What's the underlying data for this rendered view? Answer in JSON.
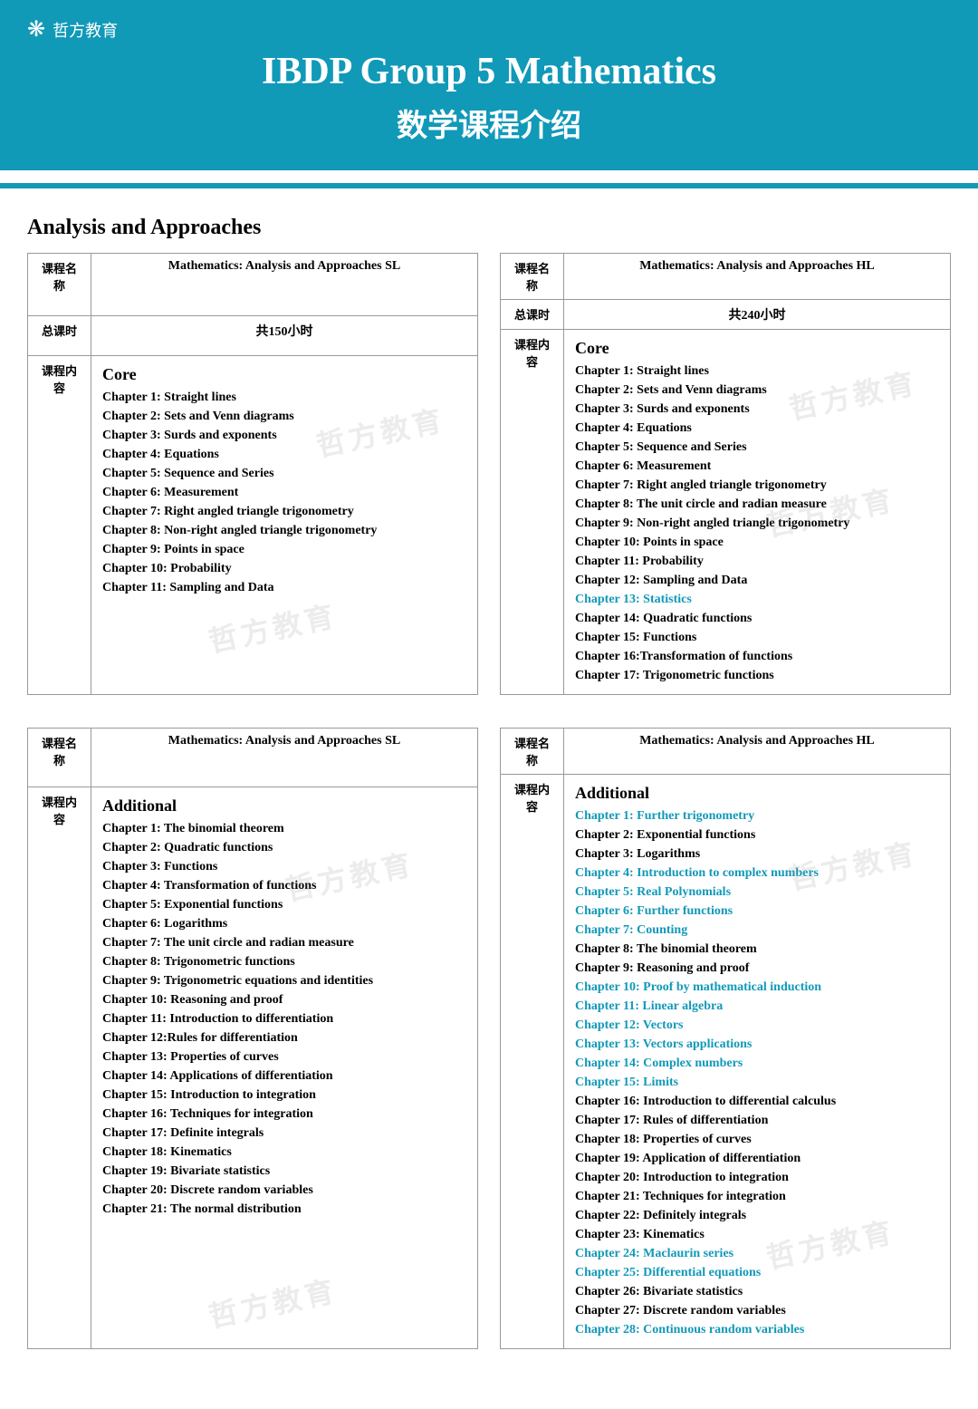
{
  "logo_text": "哲方教育",
  "title": "IBDP Group 5 Mathematics",
  "subtitle": "数学课程介绍",
  "section_title": "Analysis and Approaches",
  "labels": {
    "course_name": "课程名称",
    "total_hours": "总课时",
    "course_content": "课程内容"
  },
  "watermark": "哲方教育",
  "highlight_color": "#1199b8",
  "tables": [
    {
      "left": {
        "name": "Mathematics: Analysis and Approaches SL",
        "hours": "共150小时",
        "section": "Core",
        "chapters": [
          {
            "t": "Chapter 1: Straight lines",
            "h": false
          },
          {
            "t": "Chapter 2: Sets and Venn diagrams",
            "h": false
          },
          {
            "t": "Chapter 3: Surds and exponents",
            "h": false
          },
          {
            "t": "Chapter 4: Equations",
            "h": false
          },
          {
            "t": "Chapter 5: Sequence and Series",
            "h": false
          },
          {
            "t": "Chapter 6: Measurement",
            "h": false
          },
          {
            "t": "Chapter 7: Right angled triangle trigonometry",
            "h": false
          },
          {
            "t": "Chapter 8: Non-right angled triangle trigonometry",
            "h": false
          },
          {
            "t": "Chapter 9: Points in space",
            "h": false
          },
          {
            "t": "Chapter 10: Probability",
            "h": false
          },
          {
            "t": "Chapter 11: Sampling and Data",
            "h": false
          }
        ]
      },
      "right": {
        "name": "Mathematics: Analysis and Approaches HL",
        "hours": "共240小时",
        "section": "Core",
        "chapters": [
          {
            "t": "Chapter 1: Straight lines",
            "h": false
          },
          {
            "t": "Chapter 2: Sets and Venn diagrams",
            "h": false
          },
          {
            "t": "Chapter 3: Surds and exponents",
            "h": false
          },
          {
            "t": "Chapter 4: Equations",
            "h": false
          },
          {
            "t": "Chapter 5: Sequence and Series",
            "h": false
          },
          {
            "t": "Chapter 6: Measurement",
            "h": false
          },
          {
            "t": "Chapter 7: Right angled triangle trigonometry",
            "h": false
          },
          {
            "t": "Chapter 8: The unit circle and radian measure",
            "h": false
          },
          {
            "t": "Chapter 9: Non-right angled triangle trigonometry",
            "h": false
          },
          {
            "t": "Chapter 10: Points in space",
            "h": false
          },
          {
            "t": "Chapter 11: Probability",
            "h": false
          },
          {
            "t": "Chapter 12: Sampling and Data",
            "h": false
          },
          {
            "t": "Chapter 13: Statistics",
            "h": true
          },
          {
            "t": "Chapter 14: Quadratic functions",
            "h": false
          },
          {
            "t": "Chapter 15: Functions",
            "h": false
          },
          {
            "t": "Chapter 16:Transformation of functions",
            "h": false
          },
          {
            "t": "Chapter 17: Trigonometric functions",
            "h": false
          }
        ]
      }
    },
    {
      "left": {
        "name": "Mathematics: Analysis and Approaches SL",
        "hours": null,
        "section": "Additional",
        "chapters": [
          {
            "t": "Chapter 1: The binomial theorem",
            "h": false
          },
          {
            "t": "Chapter 2: Quadratic functions",
            "h": false
          },
          {
            "t": "Chapter 3: Functions",
            "h": false
          },
          {
            "t": "Chapter 4: Transformation of functions",
            "h": false
          },
          {
            "t": "Chapter 5: Exponential functions",
            "h": false
          },
          {
            "t": "Chapter 6: Logarithms",
            "h": false
          },
          {
            "t": "Chapter 7: The unit circle and radian measure",
            "h": false
          },
          {
            "t": "Chapter 8: Trigonometric functions",
            "h": false
          },
          {
            "t": "Chapter 9: Trigonometric equations and identities",
            "h": false
          },
          {
            "t": "Chapter 10: Reasoning and proof",
            "h": false
          },
          {
            "t": "Chapter 11: Introduction to differentiation",
            "h": false
          },
          {
            "t": "Chapter 12:Rules for differentiation",
            "h": false
          },
          {
            "t": "Chapter 13: Properties of curves",
            "h": false
          },
          {
            "t": "Chapter 14: Applications of differentiation",
            "h": false
          },
          {
            "t": "Chapter 15: Introduction to integration",
            "h": false
          },
          {
            "t": "Chapter 16: Techniques for integration",
            "h": false
          },
          {
            "t": "Chapter 17: Definite integrals",
            "h": false
          },
          {
            "t": "Chapter 18: Kinematics",
            "h": false
          },
          {
            "t": "Chapter 19: Bivariate statistics",
            "h": false
          },
          {
            "t": "Chapter 20: Discrete random variables",
            "h": false
          },
          {
            "t": "Chapter 21: The normal distribution",
            "h": false
          }
        ]
      },
      "right": {
        "name": "Mathematics: Analysis and Approaches HL",
        "hours": null,
        "section": "Additional",
        "chapters": [
          {
            "t": "Chapter 1: Further trigonometry",
            "h": true
          },
          {
            "t": "Chapter 2: Exponential functions",
            "h": false
          },
          {
            "t": "Chapter 3: Logarithms",
            "h": false
          },
          {
            "t": "Chapter 4: Introduction to complex numbers",
            "h": true
          },
          {
            "t": "Chapter 5: Real Polynomials",
            "h": true
          },
          {
            "t": "Chapter 6: Further functions",
            "h": true
          },
          {
            "t": "Chapter 7: Counting",
            "h": true
          },
          {
            "t": "Chapter 8: The binomial theorem",
            "h": false
          },
          {
            "t": "Chapter 9: Reasoning and proof",
            "h": false
          },
          {
            "t": "Chapter 10: Proof by mathematical induction",
            "h": true
          },
          {
            "t": "Chapter 11: Linear algebra",
            "h": true
          },
          {
            "t": "Chapter 12: Vectors",
            "h": true
          },
          {
            "t": "Chapter 13: Vectors applications",
            "h": true
          },
          {
            "t": "Chapter 14: Complex numbers",
            "h": true
          },
          {
            "t": "Chapter 15: Limits",
            "h": true
          },
          {
            "t": "Chapter 16: Introduction to differential calculus",
            "h": false
          },
          {
            "t": "Chapter 17: Rules of differentiation",
            "h": false
          },
          {
            "t": "Chapter 18: Properties of curves",
            "h": false
          },
          {
            "t": "Chapter 19: Application of differentiation",
            "h": false
          },
          {
            "t": "Chapter 20: Introduction to integration",
            "h": false
          },
          {
            "t": "Chapter 21: Techniques for integration",
            "h": false
          },
          {
            "t": "Chapter 22: Definitely integrals",
            "h": false
          },
          {
            "t": "Chapter 23: Kinematics",
            "h": false
          },
          {
            "t": "Chapter 24: Maclaurin series",
            "h": true
          },
          {
            "t": "Chapter 25: Differential equations",
            "h": true
          },
          {
            "t": "Chapter 26: Bivariate statistics",
            "h": false
          },
          {
            "t": "Chapter 27: Discrete random variables",
            "h": false
          },
          {
            "t": "Chapter 28: Continuous random variables",
            "h": true
          }
        ]
      }
    }
  ]
}
